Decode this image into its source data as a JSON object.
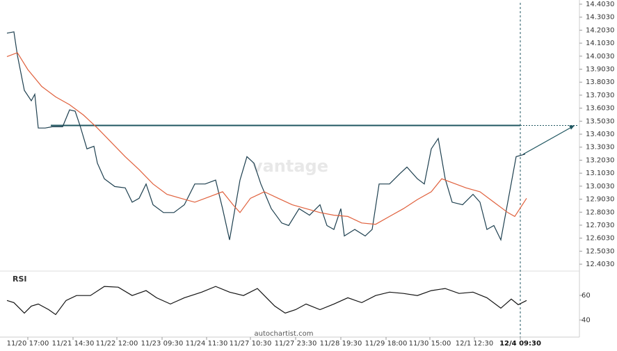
{
  "chart_data": {
    "type": "line",
    "indicator_title": "RSI",
    "source": "autochartist.com",
    "watermark": "vantage",
    "xlim": [
      0,
      830
    ],
    "ylim": [
      12.35,
      14.435
    ],
    "y2lim": [
      30,
      77
    ],
    "xticks": [
      {
        "value": 40,
        "label": "11/20 17:00"
      },
      {
        "value": 105,
        "label": "11/21 14:30"
      },
      {
        "value": 168,
        "label": "11/22 12:00"
      },
      {
        "value": 233,
        "label": "11/23 09:30"
      },
      {
        "value": 297,
        "label": "11/24 11:30"
      },
      {
        "value": 360,
        "label": "11/27 10:30"
      },
      {
        "value": 425,
        "label": "11/27 23:30"
      },
      {
        "value": 490,
        "label": "11/28 19:30"
      },
      {
        "value": 555,
        "label": "11/29 18:00"
      },
      {
        "value": 618,
        "label": "11/30 15:00"
      },
      {
        "value": 682,
        "label": "12/1 12:30"
      },
      {
        "value": 748,
        "label": "12/4 09:30"
      }
    ],
    "yticks": [
      {
        "value": 14.403,
        "label": "14.4030"
      },
      {
        "value": 14.303,
        "label": "14.3030"
      },
      {
        "value": 14.203,
        "label": "14.2030"
      },
      {
        "value": 14.103,
        "label": "14.1030"
      },
      {
        "value": 14.003,
        "label": "14.0030"
      },
      {
        "value": 13.903,
        "label": "13.9030"
      },
      {
        "value": 13.803,
        "label": "13.8030"
      },
      {
        "value": 13.703,
        "label": "13.7030"
      },
      {
        "value": 13.603,
        "label": "13.6030"
      },
      {
        "value": 13.503,
        "label": "13.5030"
      },
      {
        "value": 13.403,
        "label": "13.4030"
      },
      {
        "value": 13.303,
        "label": "13.3030"
      },
      {
        "value": 13.203,
        "label": "13.2030"
      },
      {
        "value": 13.103,
        "label": "13.1030"
      },
      {
        "value": 13.003,
        "label": "13.0030"
      },
      {
        "value": 12.903,
        "label": "12.9030"
      },
      {
        "value": 12.803,
        "label": "12.8030"
      },
      {
        "value": 12.703,
        "label": "12.7030"
      },
      {
        "value": 12.603,
        "label": "12.6030"
      },
      {
        "value": 12.503,
        "label": "12.5030"
      },
      {
        "value": 12.403,
        "label": "12.4030"
      }
    ],
    "y2ticks": [
      40,
      60
    ],
    "resistance": 13.47,
    "forecast_time": 748,
    "series": [
      {
        "color": "#1d3f4f",
        "x": [
          10,
          20,
          25,
          35,
          45,
          50,
          55,
          65,
          75,
          90,
          100,
          108,
          115,
          125,
          135,
          140,
          150,
          165,
          180,
          190,
          200,
          210,
          220,
          235,
          250,
          265,
          280,
          295,
          310,
          320,
          330,
          345,
          355,
          365,
          375,
          390,
          405,
          415,
          430,
          445,
          460,
          470,
          480,
          490,
          495,
          510,
          525,
          535,
          545,
          560,
          575,
          585,
          600,
          610,
          620,
          630,
          640,
          650,
          665,
          680,
          690,
          700,
          710,
          720,
          742,
          755
        ],
        "values": [
          14.18,
          14.19,
          14.01,
          13.74,
          13.66,
          13.71,
          13.45,
          13.45,
          13.46,
          13.46,
          13.59,
          13.58,
          13.47,
          13.29,
          13.31,
          13.18,
          13.06,
          13.0,
          12.99,
          12.88,
          12.91,
          13.02,
          12.86,
          12.8,
          12.8,
          12.86,
          13.02,
          13.02,
          13.05,
          12.83,
          12.59,
          13.05,
          13.23,
          13.18,
          13.02,
          12.83,
          12.72,
          12.7,
          12.83,
          12.78,
          12.86,
          12.7,
          12.67,
          12.83,
          12.62,
          12.67,
          12.62,
          12.67,
          13.02,
          13.02,
          13.1,
          13.15,
          13.06,
          13.02,
          13.29,
          13.37,
          13.06,
          12.88,
          12.86,
          12.94,
          12.88,
          12.67,
          12.7,
          12.59,
          13.23,
          13.25
        ]
      },
      {
        "color": "#e0603c",
        "x": [
          10,
          25,
          40,
          60,
          80,
          100,
          120,
          140,
          160,
          180,
          200,
          220,
          240,
          260,
          280,
          300,
          320,
          335,
          345,
          360,
          380,
          400,
          420,
          440,
          460,
          480,
          500,
          520,
          540,
          560,
          580,
          600,
          620,
          635,
          650,
          670,
          690,
          710,
          730,
          740,
          757
        ],
        "values": [
          14.0,
          14.03,
          13.9,
          13.77,
          13.69,
          13.63,
          13.55,
          13.45,
          13.34,
          13.23,
          13.13,
          13.02,
          12.94,
          12.91,
          12.88,
          12.92,
          12.96,
          12.86,
          12.8,
          12.91,
          12.96,
          12.91,
          12.86,
          12.83,
          12.8,
          12.78,
          12.77,
          12.72,
          12.71,
          12.77,
          12.83,
          12.9,
          12.96,
          13.06,
          13.03,
          12.99,
          12.96,
          12.88,
          12.8,
          12.77,
          12.91
        ]
      },
      {
        "color": "#111111",
        "axis": "y2",
        "x": [
          10,
          20,
          35,
          45,
          55,
          70,
          80,
          95,
          110,
          130,
          150,
          170,
          190,
          210,
          225,
          245,
          265,
          290,
          310,
          330,
          350,
          370,
          395,
          410,
          425,
          440,
          460,
          480,
          500,
          520,
          540,
          560,
          580,
          600,
          620,
          640,
          660,
          680,
          700,
          720,
          735,
          745,
          757
        ],
        "values": [
          55.9,
          54.1,
          45.6,
          51.3,
          53.0,
          48.4,
          44.4,
          55.9,
          59.9,
          59.9,
          67.3,
          66.7,
          59.9,
          63.9,
          58.1,
          53.0,
          58.1,
          62.7,
          67.3,
          62.7,
          59.9,
          65.6,
          51.3,
          45.6,
          48.4,
          53.0,
          48.4,
          53.0,
          58.1,
          54.1,
          59.9,
          62.7,
          61.6,
          59.9,
          63.9,
          65.6,
          61.6,
          62.7,
          58.1,
          49.6,
          57.0,
          52.4,
          55.9
        ]
      }
    ]
  }
}
